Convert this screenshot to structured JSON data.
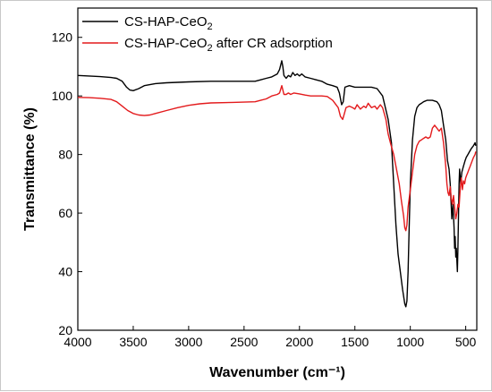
{
  "chart_data": {
    "type": "line",
    "xlabel": "Wavenumber (cm⁻¹)",
    "ylabel": "Transmittance (%)",
    "xlim": [
      4000,
      400
    ],
    "ylim": [
      20,
      130
    ],
    "x_reversed": true,
    "xticks": [
      4000,
      3500,
      3000,
      2500,
      2000,
      1500,
      1000,
      500
    ],
    "yticks": [
      20,
      40,
      60,
      80,
      100,
      120
    ],
    "grid": false,
    "legend_position": "top-left",
    "series": [
      {
        "name": "CS-HAP-CeO2",
        "legend_base": "CS-HAP-CeO",
        "legend_sub": "2",
        "legend_suffix": "",
        "color": "#000000",
        "points": [
          [
            4000,
            107
          ],
          [
            3900,
            106.8
          ],
          [
            3800,
            106.6
          ],
          [
            3700,
            106.3
          ],
          [
            3650,
            106
          ],
          [
            3600,
            105
          ],
          [
            3560,
            103
          ],
          [
            3530,
            102
          ],
          [
            3500,
            101.8
          ],
          [
            3450,
            102.5
          ],
          [
            3400,
            103.5
          ],
          [
            3300,
            104.2
          ],
          [
            3200,
            104.5
          ],
          [
            3000,
            104.8
          ],
          [
            2800,
            105
          ],
          [
            2600,
            105
          ],
          [
            2400,
            105
          ],
          [
            2350,
            105.5
          ],
          [
            2300,
            106
          ],
          [
            2250,
            106.5
          ],
          [
            2200,
            107.5
          ],
          [
            2180,
            109
          ],
          [
            2160,
            112
          ],
          [
            2150,
            110
          ],
          [
            2140,
            107
          ],
          [
            2120,
            106
          ],
          [
            2100,
            107
          ],
          [
            2080,
            106.5
          ],
          [
            2060,
            108
          ],
          [
            2040,
            107
          ],
          [
            2020,
            107.5
          ],
          [
            2000,
            106.8
          ],
          [
            1980,
            107.5
          ],
          [
            1950,
            106.5
          ],
          [
            1900,
            106
          ],
          [
            1850,
            105.5
          ],
          [
            1800,
            105
          ],
          [
            1750,
            104
          ],
          [
            1700,
            103.5
          ],
          [
            1660,
            103
          ],
          [
            1640,
            101
          ],
          [
            1620,
            97
          ],
          [
            1605,
            98
          ],
          [
            1590,
            103
          ],
          [
            1550,
            103.5
          ],
          [
            1500,
            103
          ],
          [
            1450,
            103
          ],
          [
            1400,
            103
          ],
          [
            1350,
            103
          ],
          [
            1300,
            102.5
          ],
          [
            1250,
            100
          ],
          [
            1200,
            92
          ],
          [
            1170,
            84
          ],
          [
            1150,
            70
          ],
          [
            1130,
            56
          ],
          [
            1110,
            46
          ],
          [
            1090,
            40
          ],
          [
            1070,
            34
          ],
          [
            1050,
            29
          ],
          [
            1040,
            28
          ],
          [
            1030,
            30
          ],
          [
            1020,
            40
          ],
          [
            1010,
            55
          ],
          [
            1000,
            70
          ],
          [
            980,
            85
          ],
          [
            960,
            93
          ],
          [
            940,
            96
          ],
          [
            920,
            97
          ],
          [
            900,
            97.5
          ],
          [
            880,
            98
          ],
          [
            850,
            98.5
          ],
          [
            800,
            98.5
          ],
          [
            760,
            98
          ],
          [
            740,
            97
          ],
          [
            720,
            95
          ],
          [
            700,
            90
          ],
          [
            680,
            85
          ],
          [
            665,
            78
          ],
          [
            650,
            75
          ],
          [
            640,
            70
          ],
          [
            630,
            62
          ],
          [
            625,
            58
          ],
          [
            615,
            63
          ],
          [
            605,
            55
          ],
          [
            600,
            48
          ],
          [
            595,
            52
          ],
          [
            590,
            45
          ],
          [
            585,
            48
          ],
          [
            575,
            40
          ],
          [
            570,
            48
          ],
          [
            565,
            60
          ],
          [
            560,
            70
          ],
          [
            555,
            75
          ],
          [
            545,
            70
          ],
          [
            535,
            74
          ],
          [
            520,
            76
          ],
          [
            505,
            78
          ],
          [
            495,
            79
          ],
          [
            480,
            80
          ],
          [
            465,
            81
          ],
          [
            450,
            82
          ],
          [
            430,
            83
          ],
          [
            415,
            84
          ],
          [
            410,
            83
          ]
        ]
      },
      {
        "name": "CS-HAP-CeO2 after CR adsorption",
        "legend_base": "CS-HAP-CeO",
        "legend_sub": "2",
        "legend_suffix": " after CR adsorption",
        "color": "#e31a1c",
        "points": [
          [
            4000,
            99.5
          ],
          [
            3900,
            99.4
          ],
          [
            3800,
            99.2
          ],
          [
            3700,
            98.8
          ],
          [
            3650,
            98
          ],
          [
            3600,
            96.5
          ],
          [
            3550,
            95
          ],
          [
            3500,
            94
          ],
          [
            3450,
            93.5
          ],
          [
            3400,
            93.3
          ],
          [
            3350,
            93.5
          ],
          [
            3300,
            94
          ],
          [
            3200,
            95
          ],
          [
            3100,
            96
          ],
          [
            3000,
            96.8
          ],
          [
            2900,
            97.3
          ],
          [
            2800,
            97.6
          ],
          [
            2600,
            97.8
          ],
          [
            2400,
            98
          ],
          [
            2350,
            98.5
          ],
          [
            2300,
            99
          ],
          [
            2250,
            100
          ],
          [
            2200,
            100.5
          ],
          [
            2180,
            101
          ],
          [
            2160,
            103.5
          ],
          [
            2150,
            102
          ],
          [
            2140,
            100.5
          ],
          [
            2120,
            100.5
          ],
          [
            2100,
            101
          ],
          [
            2080,
            100.5
          ],
          [
            2050,
            101
          ],
          [
            2000,
            100.7
          ],
          [
            1950,
            100.3
          ],
          [
            1900,
            100
          ],
          [
            1800,
            100
          ],
          [
            1750,
            99.8
          ],
          [
            1700,
            98.5
          ],
          [
            1650,
            96
          ],
          [
            1630,
            93
          ],
          [
            1610,
            92
          ],
          [
            1595,
            94
          ],
          [
            1580,
            96
          ],
          [
            1550,
            96.5
          ],
          [
            1520,
            96
          ],
          [
            1500,
            95.5
          ],
          [
            1480,
            97
          ],
          [
            1450,
            95.5
          ],
          [
            1420,
            96.5
          ],
          [
            1400,
            96
          ],
          [
            1380,
            97.5
          ],
          [
            1350,
            96
          ],
          [
            1320,
            96.5
          ],
          [
            1300,
            95.5
          ],
          [
            1270,
            97
          ],
          [
            1250,
            96
          ],
          [
            1220,
            92
          ],
          [
            1200,
            87
          ],
          [
            1180,
            84
          ],
          [
            1150,
            80
          ],
          [
            1130,
            76
          ],
          [
            1100,
            70
          ],
          [
            1080,
            64
          ],
          [
            1060,
            59
          ],
          [
            1050,
            55
          ],
          [
            1040,
            54
          ],
          [
            1030,
            56
          ],
          [
            1020,
            62
          ],
          [
            1000,
            68
          ],
          [
            980,
            74
          ],
          [
            960,
            80
          ],
          [
            940,
            83
          ],
          [
            920,
            84.5
          ],
          [
            900,
            85
          ],
          [
            880,
            85.5
          ],
          [
            860,
            86
          ],
          [
            840,
            85.5
          ],
          [
            820,
            86
          ],
          [
            800,
            89
          ],
          [
            780,
            90
          ],
          [
            760,
            89
          ],
          [
            740,
            88
          ],
          [
            720,
            89
          ],
          [
            700,
            84
          ],
          [
            690,
            80
          ],
          [
            680,
            76
          ],
          [
            670,
            70
          ],
          [
            660,
            67
          ],
          [
            650,
            66
          ],
          [
            640,
            69
          ],
          [
            630,
            65
          ],
          [
            620,
            63
          ],
          [
            610,
            66
          ],
          [
            600,
            62
          ],
          [
            590,
            58
          ],
          [
            580,
            60
          ],
          [
            570,
            63
          ],
          [
            560,
            62
          ],
          [
            550,
            68
          ],
          [
            540,
            72
          ],
          [
            530,
            68
          ],
          [
            520,
            71
          ],
          [
            510,
            70
          ],
          [
            500,
            72
          ],
          [
            490,
            73
          ],
          [
            480,
            74
          ],
          [
            470,
            75
          ],
          [
            460,
            76
          ],
          [
            450,
            77
          ],
          [
            430,
            79
          ],
          [
            415,
            80
          ],
          [
            410,
            81
          ]
        ]
      }
    ]
  }
}
